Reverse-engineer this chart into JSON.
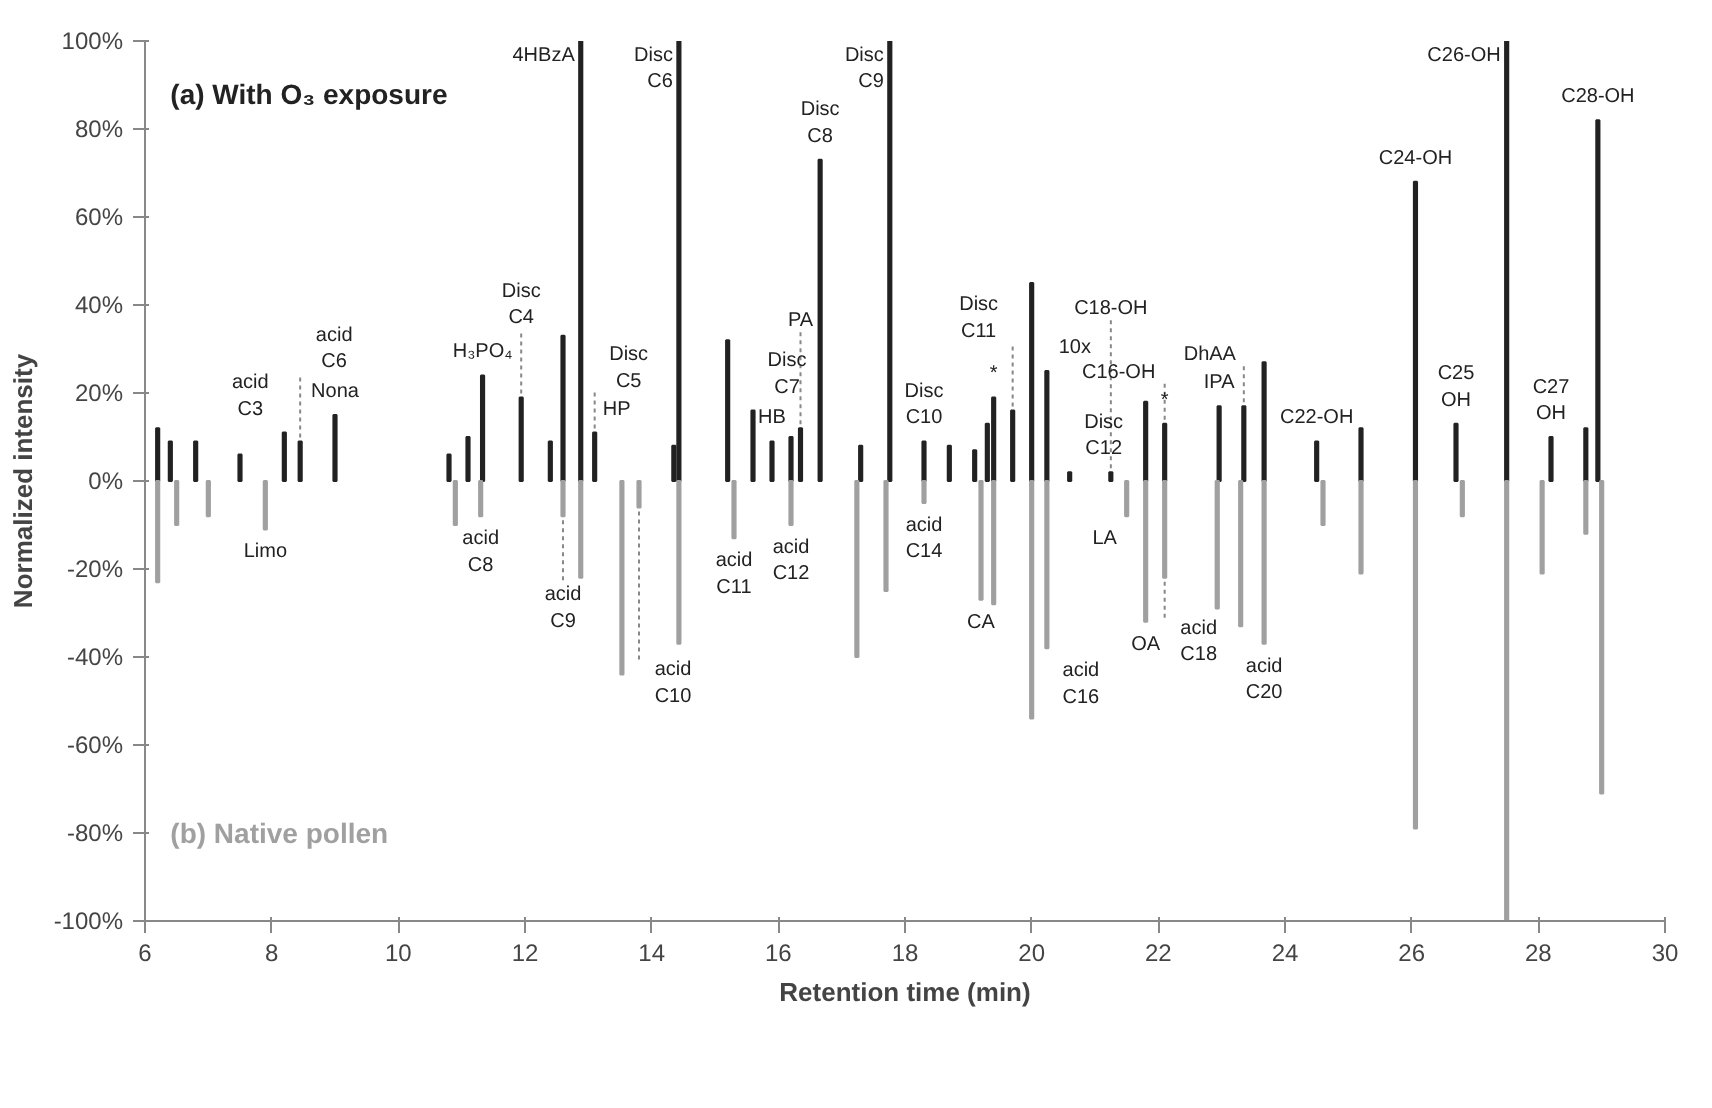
{
  "chart_data": {
    "type": "bar",
    "xlabel": "Retention time (min)",
    "ylabel": "Normalized intensity",
    "xlim": [
      6,
      30
    ],
    "xticks": [
      6,
      8,
      10,
      12,
      14,
      16,
      18,
      20,
      22,
      24,
      26,
      28,
      30
    ],
    "ylim": [
      -100,
      100
    ],
    "yticks": [
      {
        "value": -100,
        "label": "-100%"
      },
      {
        "value": -80,
        "label": "-80%"
      },
      {
        "value": -60,
        "label": "-60%"
      },
      {
        "value": -40,
        "label": "-40%"
      },
      {
        "value": -20,
        "label": "-20%"
      },
      {
        "value": 0,
        "label": "0%"
      },
      {
        "value": 20,
        "label": "20%"
      },
      {
        "value": 40,
        "label": "40%"
      },
      {
        "value": 60,
        "label": "60%"
      },
      {
        "value": 80,
        "label": "80%"
      },
      {
        "value": 100,
        "label": "100%"
      }
    ],
    "grid": false,
    "legend": false,
    "series": [
      {
        "name": "(a) With O₃ exposure",
        "color": "#222222",
        "x": [
          6.2,
          6.4,
          6.8,
          7.5,
          8.2,
          8.45,
          9.0,
          10.8,
          11.1,
          11.33,
          11.94,
          12.4,
          12.6,
          12.88,
          13.1,
          14.35,
          14.43,
          15.2,
          15.6,
          15.9,
          16.2,
          16.35,
          16.66,
          17.3,
          17.76,
          18.3,
          18.7,
          19.1,
          19.3,
          19.4,
          19.7,
          20.0,
          20.24,
          20.6,
          21.25,
          21.8,
          22.1,
          22.96,
          23.35,
          23.67,
          24.5,
          25.2,
          26.06,
          26.7,
          27.5,
          28.2,
          28.75,
          28.94
        ],
        "values": [
          12,
          9,
          9,
          6,
          11,
          9,
          15,
          6,
          10,
          24,
          19,
          9,
          33,
          100,
          11,
          8,
          100,
          32,
          16,
          9,
          10,
          12,
          73,
          8,
          100,
          9,
          8,
          7,
          13,
          19,
          16,
          45,
          25,
          2,
          2,
          18,
          13,
          17,
          17,
          27,
          9,
          12,
          68,
          13,
          100,
          10,
          12,
          82
        ]
      },
      {
        "name": "(b) Native pollen",
        "color": "#a0a0a0",
        "x": [
          6.2,
          6.5,
          7.0,
          7.9,
          10.9,
          11.3,
          12.6,
          12.88,
          13.53,
          13.8,
          14.43,
          15.3,
          16.2,
          17.24,
          17.7,
          18.3,
          19.2,
          19.4,
          20.0,
          20.24,
          21.5,
          21.8,
          22.1,
          22.93,
          23.3,
          23.67,
          24.6,
          25.2,
          26.06,
          26.8,
          27.5,
          28.06,
          28.75,
          29.0
        ],
        "values": [
          -23,
          -10,
          -8,
          -11,
          -10,
          -8,
          -8,
          -22,
          -44,
          -6,
          -37,
          -13,
          -10,
          -40,
          -25,
          -5,
          -27,
          -28,
          -54,
          -38,
          -8,
          -32,
          -22,
          -29,
          -33,
          -37,
          -10,
          -21,
          -79,
          -8,
          -100,
          -21,
          -12,
          -71
        ]
      }
    ],
    "annotations": [
      {
        "text": "acid\nC3",
        "x": 8.2,
        "y": 11
      },
      {
        "text": "acid\nC6",
        "x": 8.45,
        "y": 9
      },
      {
        "text": "Nona",
        "x": 9.0,
        "y": 15
      },
      {
        "text": "H₃PO₄",
        "x": 11.33,
        "y": 24
      },
      {
        "text": "Disc\nC4",
        "x": 11.94,
        "y": 19
      },
      {
        "text": "4HBzA",
        "x": 12.88,
        "y": 100
      },
      {
        "text": "Disc\nC6",
        "x": 14.43,
        "y": 100
      },
      {
        "text": "HP",
        "x": 13.1,
        "y": 11
      },
      {
        "text": "Disc\nC5",
        "x": 13.1,
        "y": 11
      },
      {
        "text": "Disc\nC7",
        "x": 15.6,
        "y": 16
      },
      {
        "text": "Disc\nC8",
        "x": 16.66,
        "y": 73
      },
      {
        "text": "HB",
        "x": 15.9,
        "y": 9
      },
      {
        "text": "PA",
        "x": 16.35,
        "y": 12
      },
      {
        "text": "Disc\nC9",
        "x": 17.76,
        "y": 100
      },
      {
        "text": "Disc\nC10",
        "x": 18.3,
        "y": 9
      },
      {
        "text": "Disc\nC11",
        "x": 19.7,
        "y": 16
      },
      {
        "text": "*",
        "x": 19.4,
        "y": 19
      },
      {
        "text": "Disc\nC12",
        "x": 20.6,
        "y": 2
      },
      {
        "text": "C16-OH",
        "x": 22.1,
        "y": 13
      },
      {
        "text": "*",
        "x": 22.1,
        "y": 13
      },
      {
        "text": "C18-OH",
        "x": 21.25,
        "y": 2
      },
      {
        "text": "DhAA",
        "x": 23.35,
        "y": 17
      },
      {
        "text": "IPA",
        "x": 22.96,
        "y": 17
      },
      {
        "text": "C22-OH",
        "x": 24.5,
        "y": 9
      },
      {
        "text": "C24-OH",
        "x": 26.06,
        "y": 68
      },
      {
        "text": "C25\nOH",
        "x": 26.7,
        "y": 13
      },
      {
        "text": "C26-OH",
        "x": 27.5,
        "y": 100
      },
      {
        "text": "C27\nOH",
        "x": 28.2,
        "y": 10
      },
      {
        "text": "C28-OH",
        "x": 28.94,
        "y": 82
      },
      {
        "text": "Limo",
        "x": 7.9,
        "y": -11
      },
      {
        "text": "CA",
        "x": 19.2,
        "y": -27
      },
      {
        "text": "LA",
        "x": 21.5,
        "y": -8
      },
      {
        "text": "OA",
        "x": 21.8,
        "y": -32
      },
      {
        "text": "acid\nC8",
        "x": 11.3,
        "y": -8
      },
      {
        "text": "acid\nC9",
        "x": 12.6,
        "y": -8
      },
      {
        "text": "acid\nC10",
        "x": 13.8,
        "y": -6
      },
      {
        "text": "acid\nC11",
        "x": 15.3,
        "y": -13
      },
      {
        "text": "acid\nC12",
        "x": 16.2,
        "y": -10
      },
      {
        "text": "acid\nC14",
        "x": 18.3,
        "y": -5
      },
      {
        "text": "acid\nC16",
        "x": 20.24,
        "y": -38
      },
      {
        "text": "acid\nC18",
        "x": 22.1,
        "y": -22
      },
      {
        "text": "acid\nC20",
        "x": 23.67,
        "y": -37
      },
      {
        "text": "10x",
        "x": 20.24,
        "y": 25
      }
    ]
  }
}
